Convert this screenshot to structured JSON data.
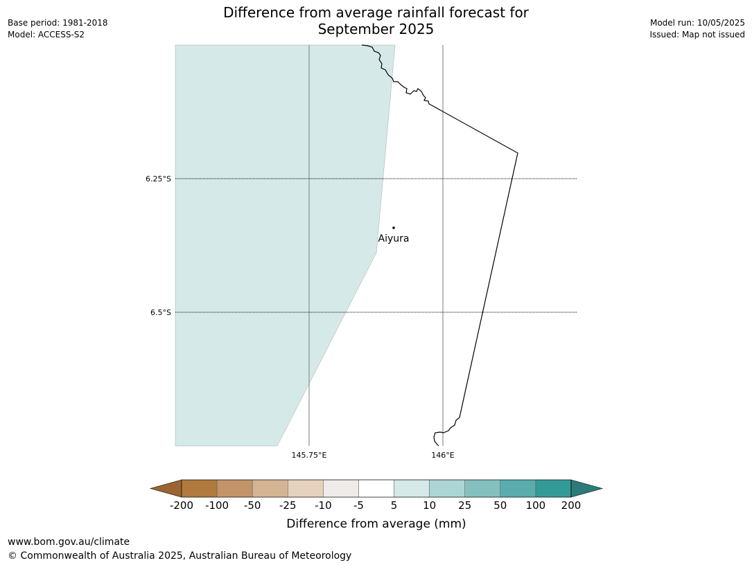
{
  "header": {
    "title_line1": "Difference from average rainfall forecast for",
    "title_line2": "September 2025",
    "base_period": "Base period: 1981-2018",
    "model": "Model: ACCESS-S2",
    "model_run": "Model run: 10/05/2025",
    "issued": "Issued: Map not issued"
  },
  "map": {
    "lat_labels": [
      "6.25°S",
      "6.5°S"
    ],
    "lon_labels": [
      "145.75°E",
      "146°E"
    ],
    "place_label": "Aiyura",
    "fill_color": "#d5e9e8"
  },
  "legend": {
    "title": "Difference from average (mm)",
    "ticks": [
      "-200",
      "-100",
      "-50",
      "-25",
      "-10",
      "-5",
      "5",
      "10",
      "25",
      "50",
      "100",
      "200"
    ],
    "colors": [
      "#9c6431",
      "#b07a3e",
      "#c29468",
      "#d4b493",
      "#e6d1bf",
      "#efebe8",
      "#ffffff",
      "#d5e9e8",
      "#acd6d5",
      "#84c1be",
      "#5aadac",
      "#329b98",
      "#2b7b7a"
    ]
  },
  "footer": {
    "url": "www.bom.gov.au/climate",
    "copyright": "© Commonwealth of Australia 2025, Australian Bureau of Meteorology"
  }
}
